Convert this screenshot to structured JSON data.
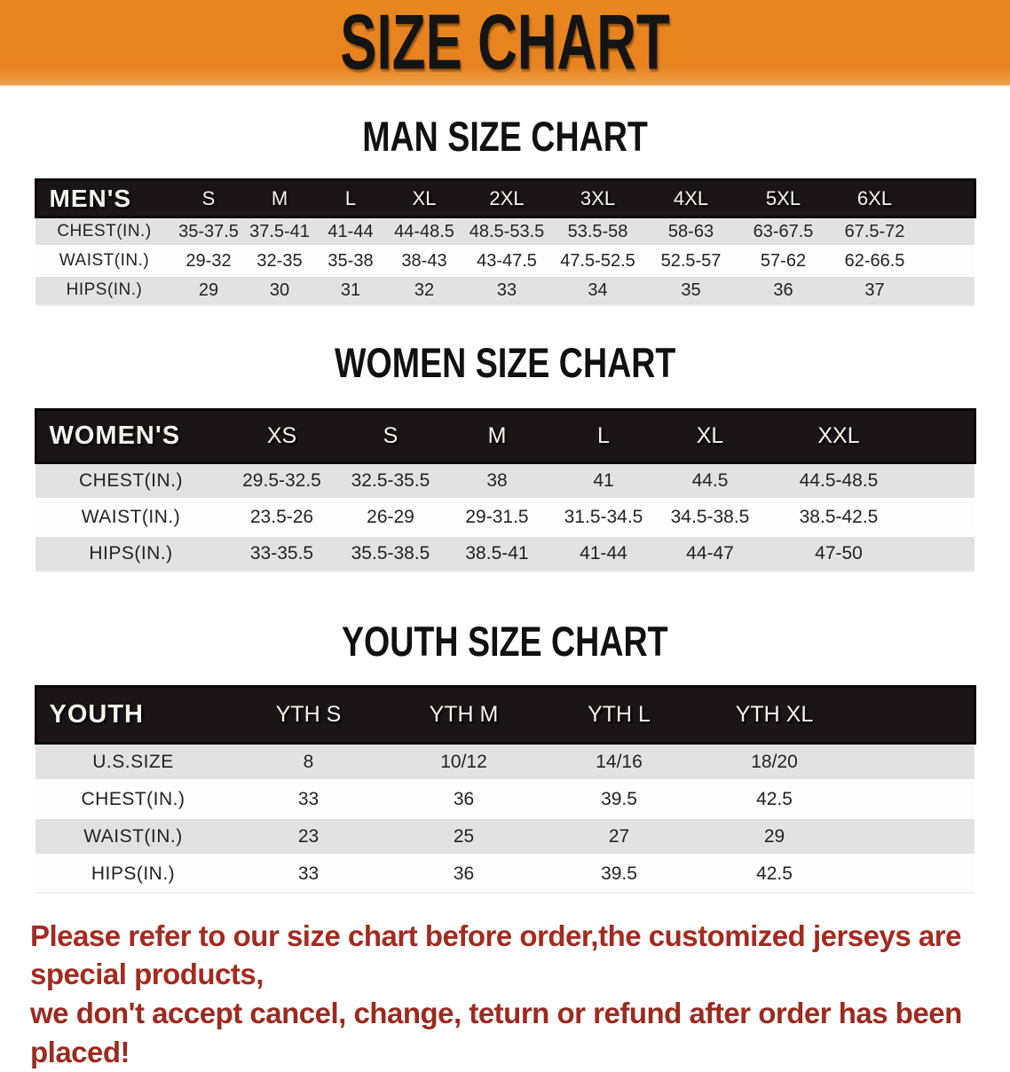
{
  "banner": {
    "title": "SIZE CHART",
    "bg_color": "#E8831F",
    "text_color": "#141414"
  },
  "sections": [
    {
      "heading": "MAN SIZE CHART",
      "table": {
        "header_label": "MEN'S",
        "columns": [
          "S",
          "M",
          "L",
          "XL",
          "2XL",
          "3XL",
          "4XL",
          "5XL",
          "6XL"
        ],
        "rows": [
          {
            "label": "CHEST(IN.)",
            "values": [
              "35-37.5",
              "37.5-41",
              "41-44",
              "44-48.5",
              "48.5-53.5",
              "53.5-58",
              "58-63",
              "63-67.5",
              "67.5-72"
            ]
          },
          {
            "label": "WAIST(IN.)",
            "values": [
              "29-32",
              "32-35",
              "35-38",
              "38-43",
              "43-47.5",
              "47.5-52.5",
              "52.5-57",
              "57-62",
              "62-66.5"
            ]
          },
          {
            "label": "HIPS(IN.)",
            "values": [
              "29",
              "30",
              "31",
              "32",
              "33",
              "34",
              "35",
              "36",
              "37"
            ]
          }
        ]
      }
    },
    {
      "heading": "WOMEN SIZE CHART",
      "table": {
        "header_label": "WOMEN'S",
        "columns": [
          "XS",
          "S",
          "M",
          "L",
          "XL",
          "XXL"
        ],
        "rows": [
          {
            "label": "CHEST(IN.)",
            "values": [
              "29.5-32.5",
              "32.5-35.5",
              "38",
              "41",
              "44.5",
              "44.5-48.5"
            ]
          },
          {
            "label": "WAIST(IN.)",
            "values": [
              "23.5-26",
              "26-29",
              "29-31.5",
              "31.5-34.5",
              "34.5-38.5",
              "38.5-42.5"
            ]
          },
          {
            "label": "HIPS(IN.)",
            "values": [
              "33-35.5",
              "35.5-38.5",
              "38.5-41",
              "41-44",
              "44-47",
              "47-50"
            ]
          }
        ]
      }
    },
    {
      "heading": "YOUTH SIZE CHART",
      "table": {
        "header_label": "YOUTH",
        "columns": [
          "YTH S",
          "YTH M",
          "YTH L",
          "YTH XL"
        ],
        "rows": [
          {
            "label": "U.S.SIZE",
            "values": [
              "8",
              "10/12",
              "14/16",
              "18/20"
            ]
          },
          {
            "label": "CHEST(IN.)",
            "values": [
              "33",
              "36",
              "39.5",
              "42.5"
            ]
          },
          {
            "label": "WAIST(IN.)",
            "values": [
              "23",
              "25",
              "27",
              "29"
            ]
          },
          {
            "label": "HIPS(IN.)",
            "values": [
              "33",
              "36",
              "39.5",
              "42.5"
            ]
          }
        ]
      }
    }
  ],
  "table_style": {
    "header_bg": "#1B1517",
    "stripe_row_bg": "#E3E2E2",
    "plain_row_bg": "#FDFDFD"
  },
  "disclaimer": {
    "line1": "Please refer to our size chart before order,the customized jerseys are special products,",
    "line2": "we don't accept cancel, change, teturn or refund after order has been placed!",
    "color": "#A22B20"
  }
}
